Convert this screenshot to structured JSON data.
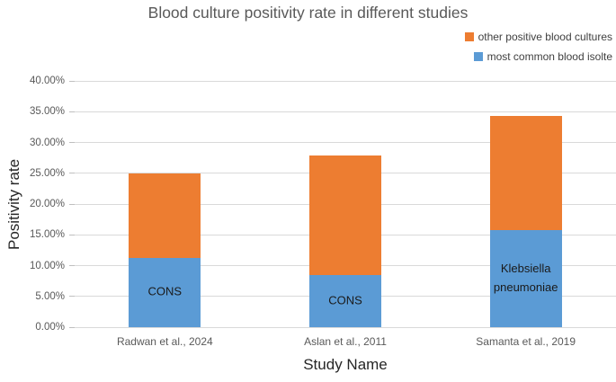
{
  "chart_data": {
    "type": "stacked-bar",
    "title": "Blood culture positivity rate in different studies",
    "xlabel": "Study Name",
    "ylabel": "Positivity rate",
    "ylim": [
      0,
      40
    ],
    "ytick_step": 5,
    "ytick_labels": [
      "0.00%",
      "5.00%",
      "10.00%",
      "15.00%",
      "20.00%",
      "25.00%",
      "30.00%",
      "35.00%",
      "40.00%"
    ],
    "grid": "horizontal",
    "legend_position": "top-right",
    "categories": [
      "Radwan et al., 2024",
      "Aslan et al., 2011",
      "Samanta et al., 2019"
    ],
    "series": [
      {
        "name": "most common blood isolte",
        "color": "#5B9BD5",
        "values": [
          11.3,
          8.5,
          15.7
        ]
      },
      {
        "name": "other positive blood cultures",
        "color": "#ED7D31",
        "values": [
          13.6,
          19.4,
          18.6
        ]
      }
    ],
    "stack_totals": [
      24.9,
      27.9,
      34.3
    ],
    "bar_segment_labels": [
      "CONS",
      "CONS",
      "Klebsiella pneumoniae"
    ],
    "colors": {
      "grid": "#d9d9d9",
      "title_text": "#595959",
      "tick_text": "#595959",
      "axis_title_text": "#262626",
      "background": "#ffffff"
    }
  }
}
